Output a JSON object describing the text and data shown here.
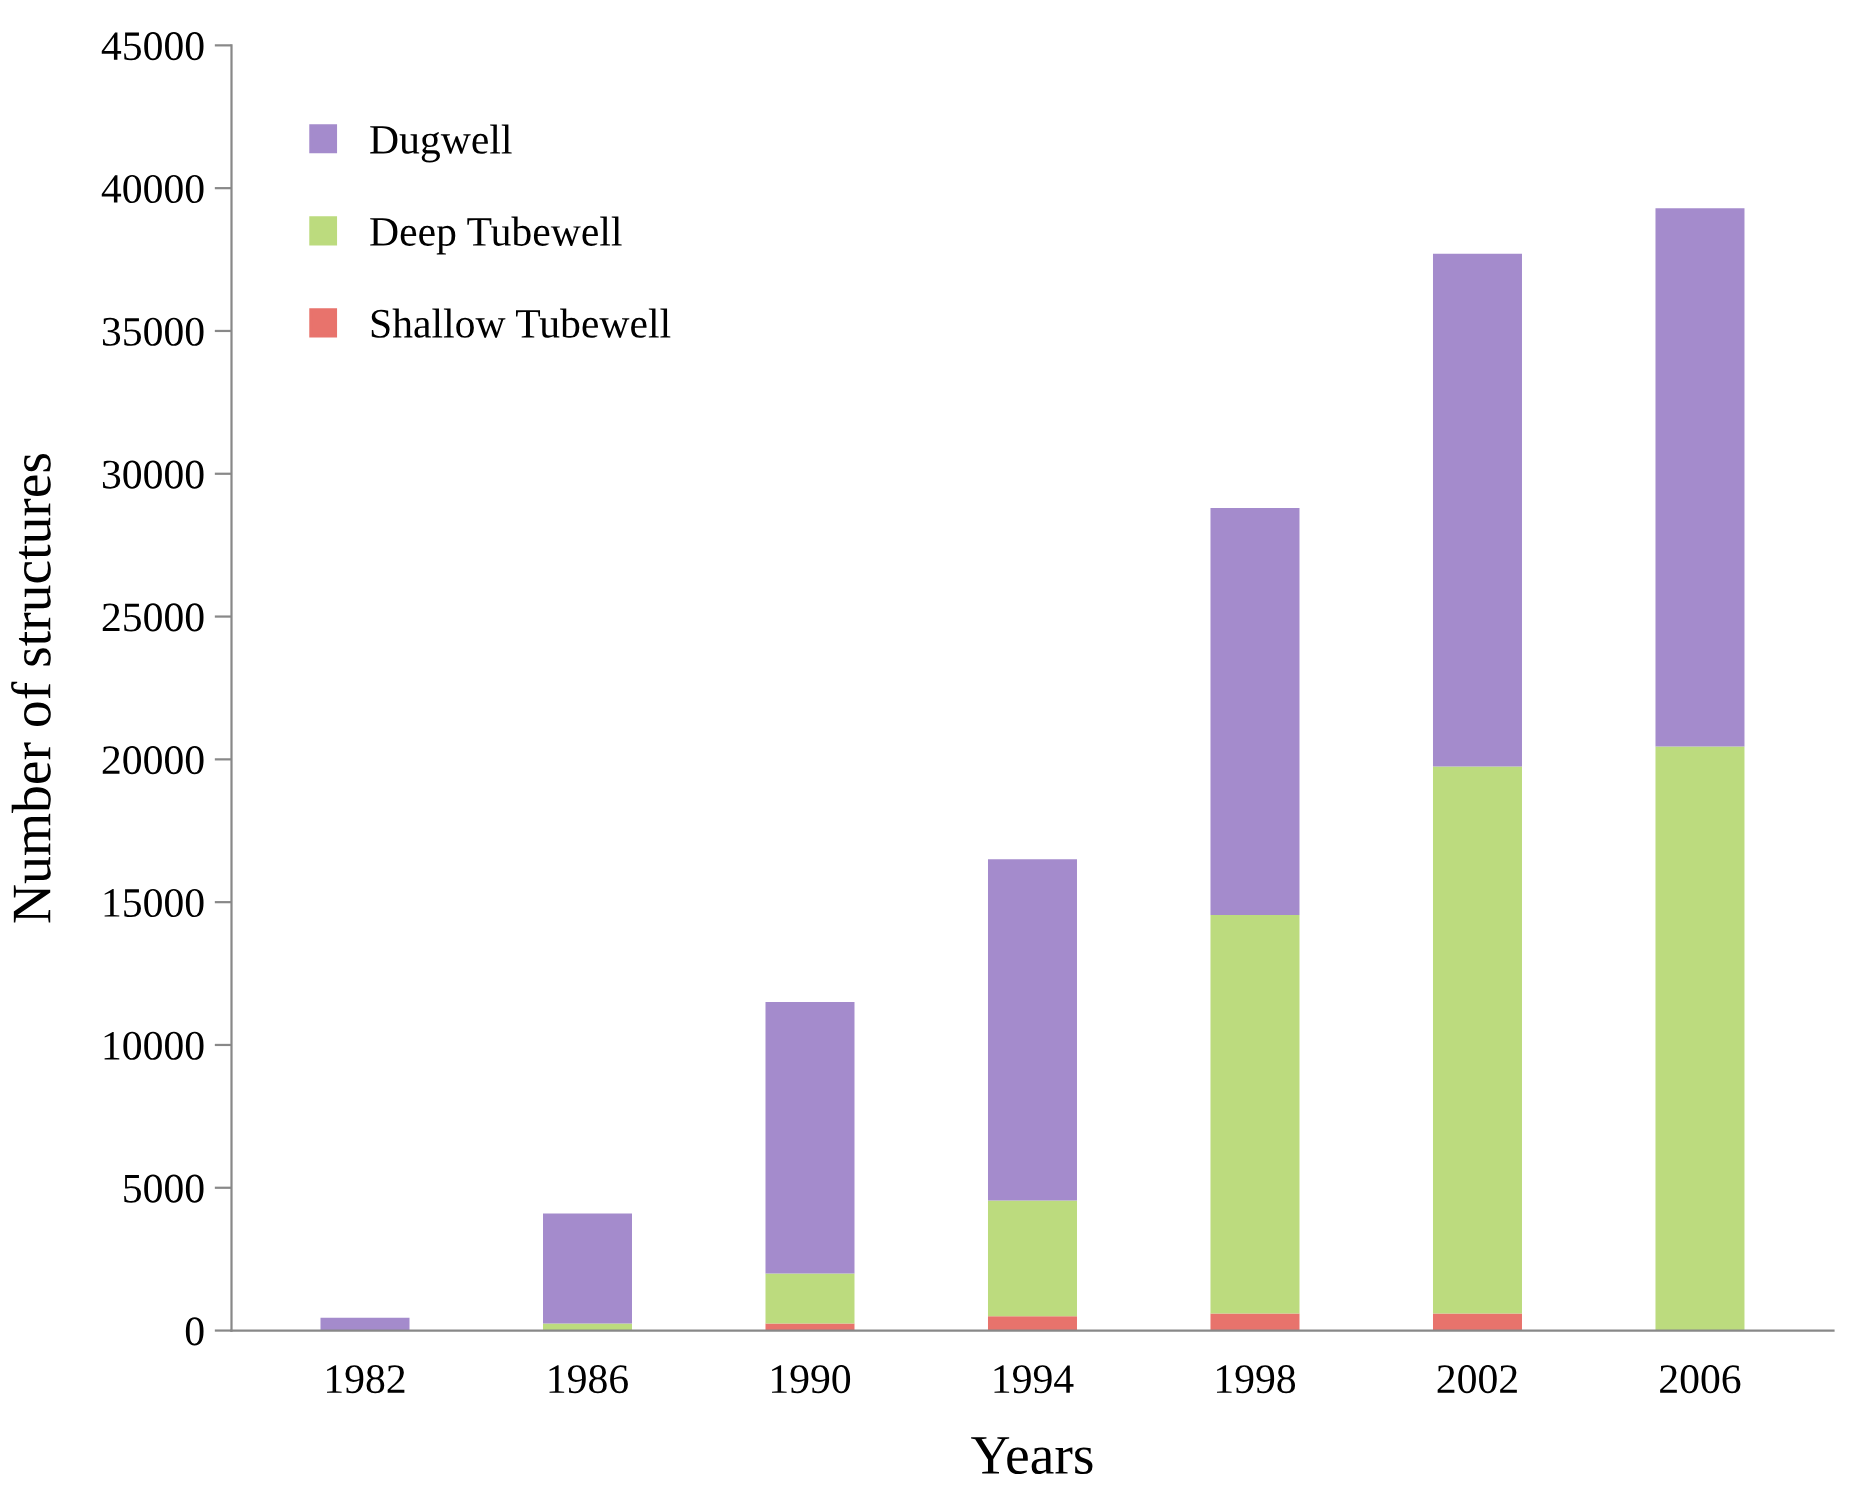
{
  "chart_data": {
    "type": "bar",
    "stacked": true,
    "xlabel": "Years",
    "ylabel": "Number of structures",
    "categories": [
      "1982",
      "1986",
      "1990",
      "1994",
      "1998",
      "2002",
      "2006"
    ],
    "series": [
      {
        "name": "Shallow Tubewell",
        "color": "#e8736c",
        "values": [
          0,
          0,
          250,
          500,
          600,
          600,
          0
        ]
      },
      {
        "name": "Deep Tubewell",
        "color": "#bcdb7e",
        "values": [
          0,
          250,
          1750,
          4050,
          13950,
          19150,
          20450
        ]
      },
      {
        "name": "Dugwell",
        "color": "#a48bcc",
        "values": [
          450,
          3850,
          9500,
          11950,
          14250,
          17950,
          18850
        ]
      }
    ],
    "ylim": [
      0,
      45000
    ],
    "yticks": [
      0,
      5000,
      10000,
      15000,
      20000,
      25000,
      30000,
      35000,
      40000,
      45000
    ],
    "grid": false,
    "legend": "top left"
  }
}
